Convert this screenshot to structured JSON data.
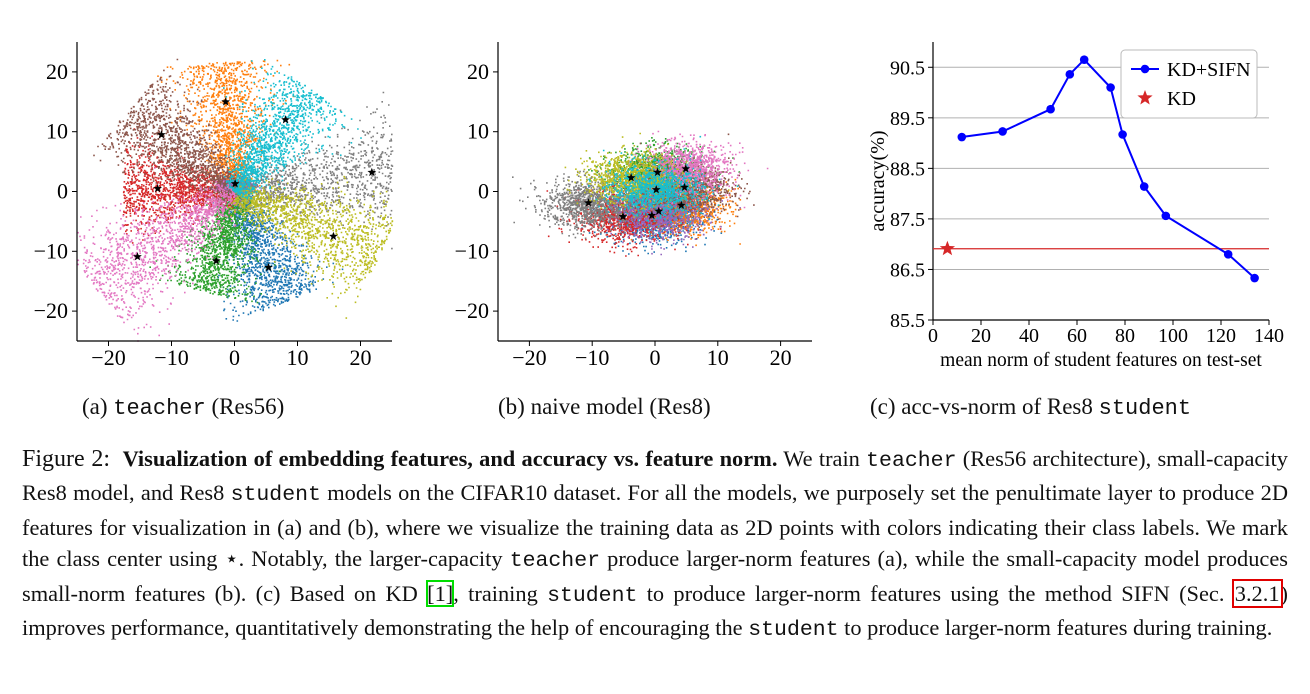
{
  "chart_data": [
    {
      "type": "scatter",
      "xlim": [
        -25,
        25
      ],
      "ylim": [
        -25,
        25
      ],
      "xticks": [
        "−20",
        "−10",
        "0",
        "10",
        "20"
      ],
      "yticks": [
        "−20",
        "−10",
        "0",
        "10",
        "20"
      ],
      "grid": false,
      "series": [
        {
          "color": "#1f77b4",
          "center": [
            5.4,
            -12.7
          ]
        },
        {
          "color": "#ff7f0e",
          "center": [
            -1.4,
            15.0
          ]
        },
        {
          "color": "#2ca02c",
          "center": [
            -2.9,
            -11.6
          ]
        },
        {
          "color": "#d62728",
          "center": [
            -12.2,
            0.5
          ]
        },
        {
          "color": "#9467bd",
          "center": [
            0.1,
            1.3
          ]
        },
        {
          "color": "#8c564b",
          "center": [
            -11.6,
            9.5
          ]
        },
        {
          "color": "#e377c2",
          "center": [
            -15.4,
            -10.9
          ]
        },
        {
          "color": "#7f7f7f",
          "center": [
            21.8,
            3.2
          ]
        },
        {
          "color": "#bcbd22",
          "center": [
            15.7,
            -7.5
          ]
        },
        {
          "color": "#17becf",
          "center": [
            8.1,
            12.0
          ]
        }
      ]
    },
    {
      "type": "scatter",
      "xlim": [
        -25,
        25
      ],
      "ylim": [
        -25,
        25
      ],
      "xticks": [
        "−20",
        "−10",
        "0",
        "10",
        "20"
      ],
      "yticks": [
        "−20",
        "−10",
        "0",
        "10",
        "20"
      ],
      "grid": false,
      "series": [
        {
          "color": "#1f77b4",
          "center": [
            -0.5,
            -4.0
          ]
        },
        {
          "color": "#ff7f0e",
          "center": [
            4.2,
            -2.3
          ]
        },
        {
          "color": "#2ca02c",
          "center": [
            0.4,
            3.2
          ]
        },
        {
          "color": "#d62728",
          "center": [
            -5.1,
            -4.2
          ]
        },
        {
          "color": "#9467bd",
          "center": [
            0.6,
            -3.3
          ]
        },
        {
          "color": "#8c564b",
          "center": [
            4.7,
            0.7
          ]
        },
        {
          "color": "#e377c2",
          "center": [
            4.9,
            3.8
          ]
        },
        {
          "color": "#7f7f7f",
          "center": [
            -10.6,
            -1.9
          ]
        },
        {
          "color": "#bcbd22",
          "center": [
            -3.8,
            2.3
          ]
        },
        {
          "color": "#17becf",
          "center": [
            0.2,
            0.3
          ]
        }
      ]
    },
    {
      "type": "line",
      "ylabel": "accuracy(%)",
      "xlabel": "mean norm of student features on test-set",
      "xlim": [
        0,
        140
      ],
      "ylim": [
        85.5,
        91.0
      ],
      "xticks": [
        "0",
        "20",
        "40",
        "60",
        "80",
        "100",
        "120",
        "140"
      ],
      "yticks": [
        "85.5",
        "86.5",
        "87.5",
        "88.5",
        "89.5",
        "90.5"
      ],
      "grid": "horizontal",
      "legend_position": "top-right",
      "series": [
        {
          "name": "KD+SIFN",
          "color": "#0000ff",
          "x": [
            12,
            29,
            49,
            57,
            63,
            74,
            79,
            88,
            97,
            123,
            134
          ],
          "y": [
            89.12,
            89.23,
            89.67,
            90.36,
            90.65,
            90.1,
            89.17,
            88.14,
            87.56,
            86.8,
            86.33
          ]
        },
        {
          "name": "KD",
          "color": "#d62728",
          "x": [
            6
          ],
          "y": [
            86.91
          ],
          "baseline": 86.91
        }
      ]
    }
  ],
  "subcaptions": {
    "a": {
      "prefix": "(a) ",
      "mono": "teacher",
      "suffix": " (Res56)"
    },
    "b": {
      "text": "(b) naive model (Res8)"
    },
    "c": {
      "prefix": "(c) acc-vs-norm of Res8 ",
      "mono": "student"
    }
  },
  "caption": {
    "label": "Figure 2:",
    "title": "Visualization of embedding features, and accuracy vs.  feature norm.",
    "t1": " We train ",
    "m_teacher": "teacher",
    "t2": " (Res56 architecture), small-capacity Res8 model, and Res8 ",
    "m_student": "student",
    "t3": " models on the CIFAR10 dataset. For all the models, we purposely set the penultimate layer to produce 2D features for visualization in (a) and (b), where we visualize the training data as 2D points with colors indicating their class labels. We mark the class center using ",
    "star": "⋆",
    "t4": ".  Notably, the larger-capacity ",
    "t5": " produce larger-norm features (a), while the small-capacity model produces small-norm features (b).  (c) Based on KD ",
    "cite": "[1]",
    "t6": ", training ",
    "t7": " to produce larger-norm features using the method SIFN (Sec. ",
    "sec": "3.2.1",
    "t8": ") improves performance, quantitatively demonstrating the help of encouraging the ",
    "t9": " to produce larger-norm features during training."
  }
}
